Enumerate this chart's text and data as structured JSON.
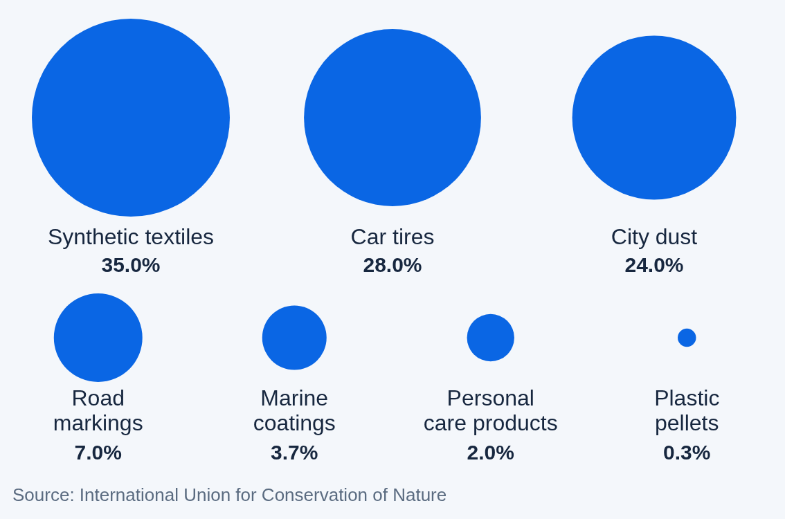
{
  "chart_data": {
    "type": "other",
    "categories": [
      "Synthetic textiles",
      "Car tires",
      "City dust",
      "Road markings",
      "Marine coatings",
      "Personal care products",
      "Plastic pellets"
    ],
    "values": [
      35.0,
      28.0,
      24.0,
      7.0,
      3.7,
      2.0,
      0.3
    ],
    "value_labels": [
      "35.0%",
      "28.0%",
      "24.0%",
      "7.0%",
      "3.7%",
      "2.0%",
      "0.3%"
    ],
    "color": "#0a66e4",
    "annotations": [
      "Source: International Union for Conservation of Nature"
    ]
  }
}
